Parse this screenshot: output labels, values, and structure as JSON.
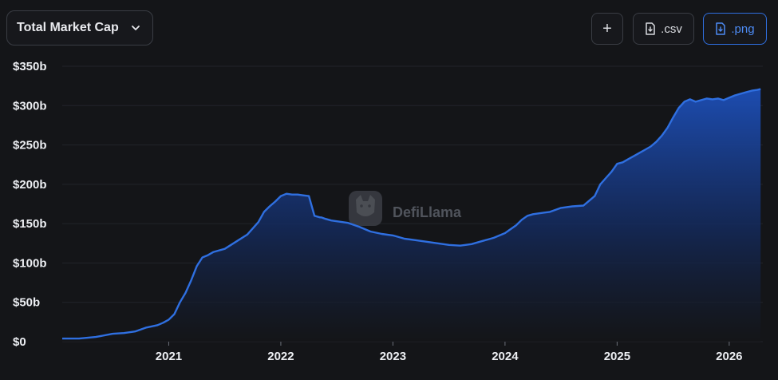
{
  "toolbar": {
    "metric_label": "Total Market Cap",
    "add_label": "+",
    "csv_label": ".csv",
    "png_label": ".png"
  },
  "watermark": "DefiLlama",
  "colors": {
    "background": "#141518",
    "line": "#2f6fe0",
    "accent": "#4d8bf5",
    "grid": "#22242a"
  },
  "chart_data": {
    "type": "area",
    "ylim": [
      0,
      350
    ],
    "xlim": [
      2020.05,
      2026.3
    ],
    "grid": "horizontal",
    "yticks": [
      0,
      50,
      100,
      150,
      200,
      250,
      300,
      350
    ],
    "ytick_labels": [
      "$0",
      "$50b",
      "$100b",
      "$150b",
      "$200b",
      "$250b",
      "$300b",
      "$350b"
    ],
    "xticks": [
      2021,
      2022,
      2023,
      2024,
      2025,
      2026
    ],
    "xtick_labels": [
      "2021",
      "2022",
      "2023",
      "2024",
      "2025",
      "2026"
    ],
    "series": [
      {
        "x": [
          2020.05,
          2020.2,
          2020.35,
          2020.5,
          2020.6,
          2020.7,
          2020.8,
          2020.9,
          2020.95,
          2021.0,
          2021.05,
          2021.1,
          2021.15,
          2021.2,
          2021.25,
          2021.3,
          2021.35,
          2021.4,
          2021.5,
          2021.6,
          2021.7,
          2021.8,
          2021.85,
          2021.9,
          2021.95,
          2022.0,
          2022.05,
          2022.1,
          2022.15,
          2022.2,
          2022.25,
          2022.3,
          2022.35,
          2022.36,
          2022.4,
          2022.45,
          2022.5,
          2022.6,
          2022.7,
          2022.8,
          2022.9,
          2023.0,
          2023.1,
          2023.2,
          2023.3,
          2023.4,
          2023.5,
          2023.6,
          2023.7,
          2023.8,
          2023.85,
          2023.9,
          2024.0,
          2024.1,
          2024.15,
          2024.2,
          2024.25,
          2024.3,
          2024.35,
          2024.4,
          2024.5,
          2024.6,
          2024.7,
          2024.8,
          2024.85,
          2024.9,
          2024.95,
          2025.0,
          2025.05,
          2025.1,
          2025.15,
          2025.2,
          2025.25,
          2025.3,
          2025.35,
          2025.4,
          2025.45,
          2025.5,
          2025.55,
          2025.6,
          2025.65,
          2025.7,
          2025.75,
          2025.8,
          2025.85,
          2025.9,
          2025.95,
          2026.0,
          2026.05,
          2026.1,
          2026.15,
          2026.2,
          2026.25,
          2026.28
        ],
        "y": [
          4,
          4,
          6,
          10,
          11,
          13,
          18,
          21,
          24,
          28,
          35,
          50,
          62,
          78,
          96,
          107,
          110,
          114,
          118,
          127,
          136,
          152,
          165,
          172,
          178,
          185,
          188,
          187,
          187,
          186,
          185,
          160,
          158,
          158,
          156,
          154,
          153,
          151,
          146,
          140,
          137,
          135,
          131,
          129,
          127,
          125,
          123,
          122,
          124,
          128,
          130,
          132,
          138,
          148,
          155,
          160,
          162,
          163,
          164,
          165,
          170,
          172,
          173,
          185,
          200,
          208,
          216,
          226,
          228,
          232,
          236,
          240,
          244,
          248,
          254,
          262,
          272,
          285,
          297,
          305,
          308,
          305,
          307,
          309,
          308,
          309,
          307,
          310,
          313,
          315,
          317,
          319,
          320,
          321
        ]
      }
    ]
  }
}
